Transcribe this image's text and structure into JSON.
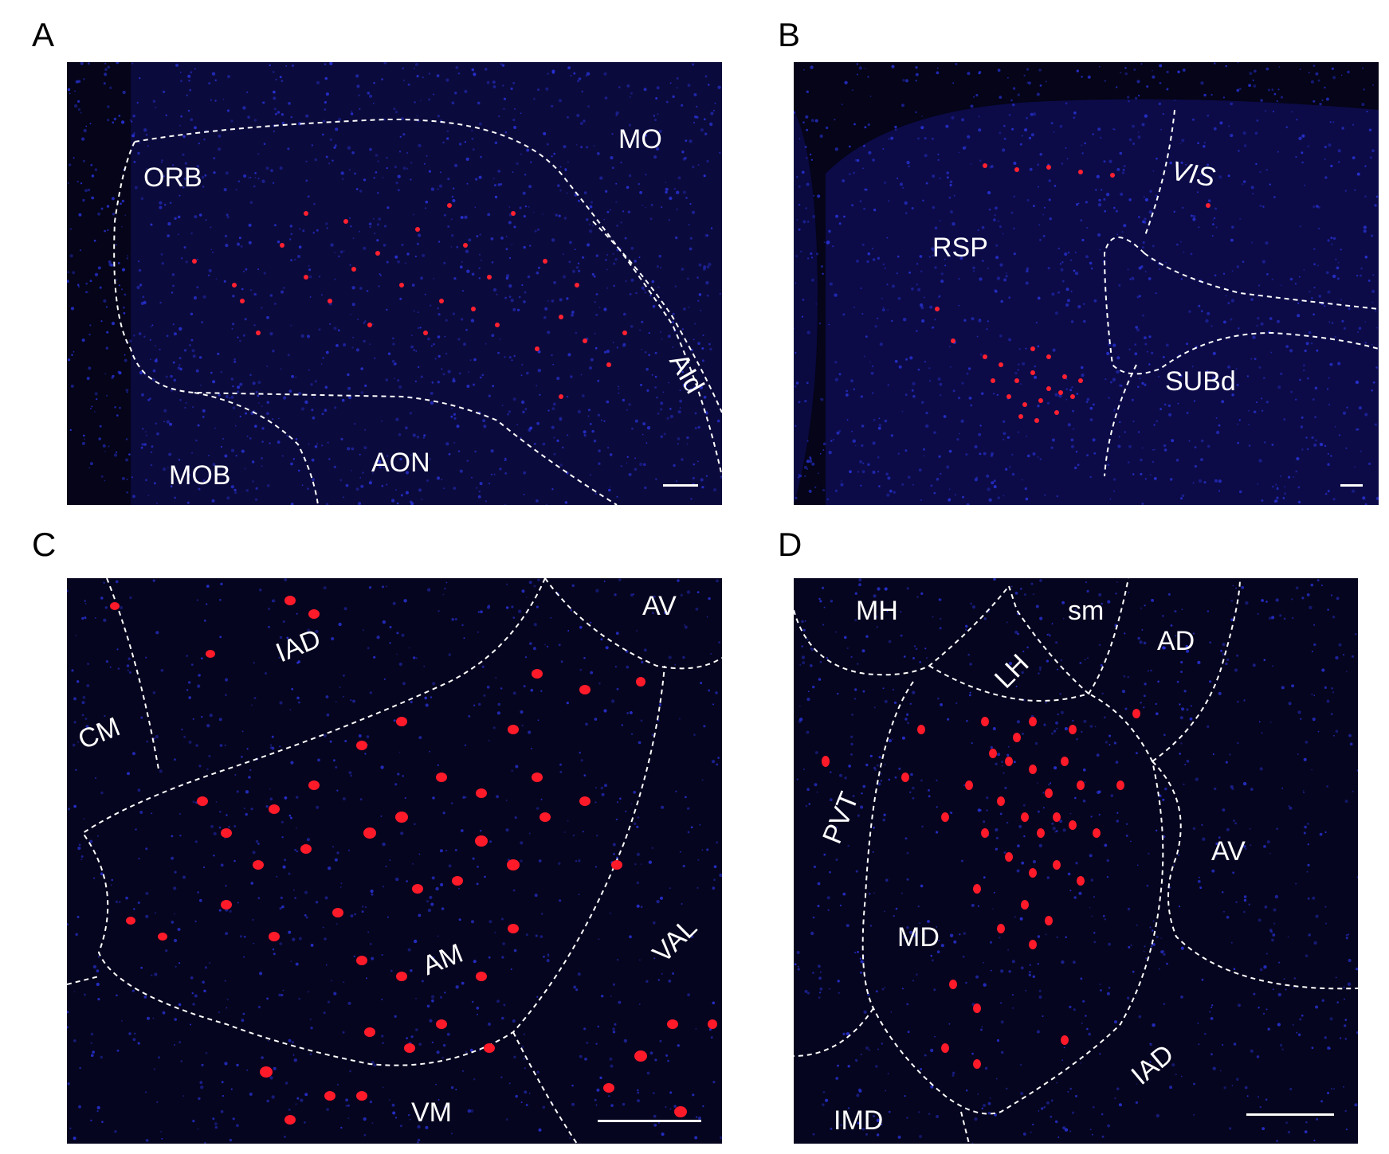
{
  "figure": {
    "panels": [
      {
        "id": "A",
        "letter": "A",
        "regions": [
          "ORB",
          "MO",
          "AId",
          "MOB",
          "AON"
        ],
        "background": "#0a0a3a",
        "label_color": "#ffffff"
      },
      {
        "id": "B",
        "letter": "B",
        "regions": [
          "RSP",
          "VIS",
          "SUBd"
        ],
        "background": "#0a0a3a",
        "label_color": "#ffffff"
      },
      {
        "id": "C",
        "letter": "C",
        "regions": [
          "AV",
          "IAD",
          "CM",
          "AM",
          "VAL",
          "VM"
        ],
        "background": "#05052a",
        "label_color": "#ffffff"
      },
      {
        "id": "D",
        "letter": "D",
        "regions": [
          "MH",
          "sm",
          "AD",
          "LH",
          "PVT",
          "AV",
          "MD",
          "IAD",
          "IMD"
        ],
        "background": "#05052a",
        "label_color": "#ffffff"
      }
    ],
    "colors": {
      "nuclei_stain": "#2a35e0",
      "labeled_cells": "#ff1a2a",
      "boundary": "#ffffff"
    }
  }
}
